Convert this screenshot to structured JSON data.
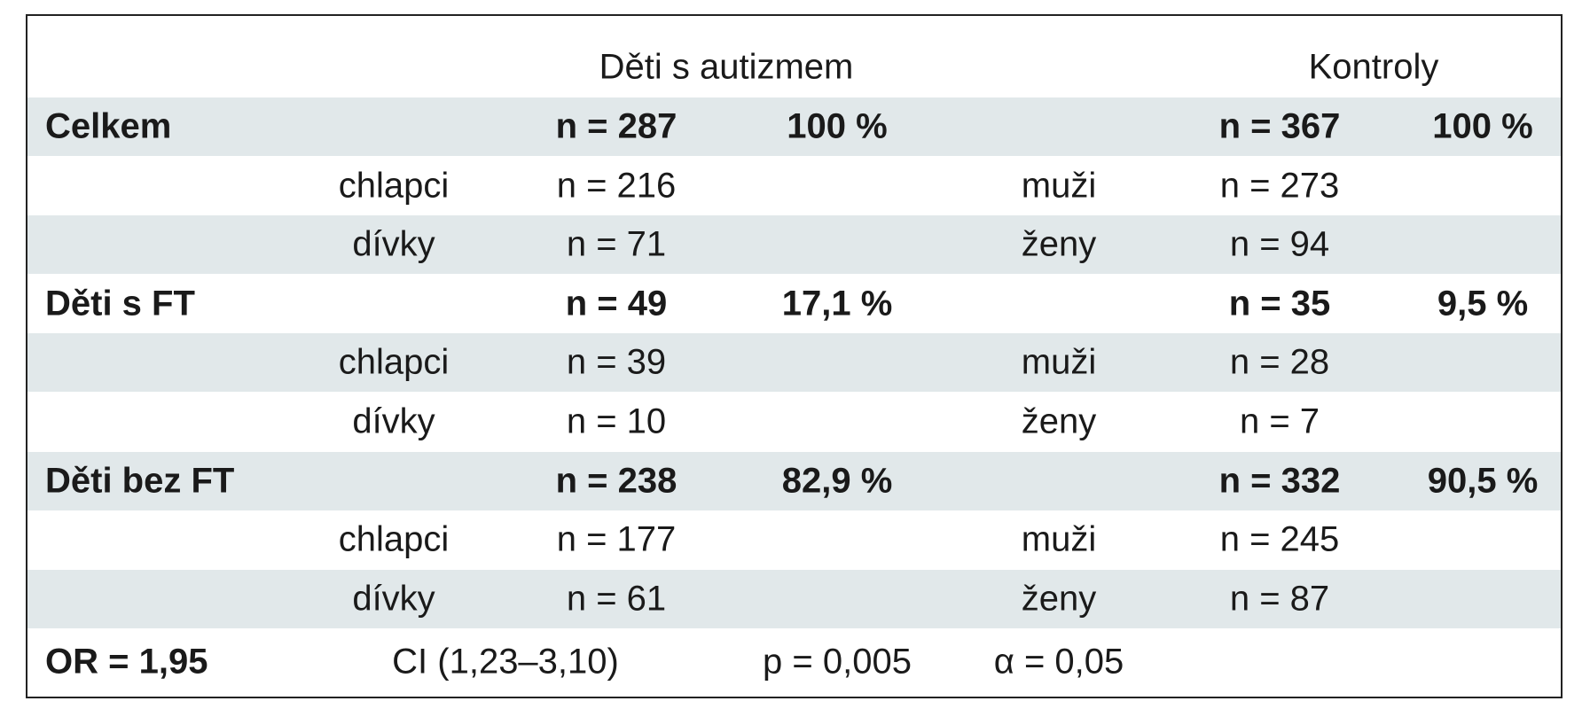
{
  "header": {
    "group1": "Děti s autizmem",
    "group2": "Kontroly"
  },
  "rows": [
    {
      "label": "Celkem",
      "n1": "n = 287",
      "pct1": "100 %",
      "n2": "n = 367",
      "pct2": "100 %"
    },
    {
      "sub1": "chlapci",
      "n1": "n = 216",
      "sub2": "muži",
      "n2": "n = 273"
    },
    {
      "sub1": "dívky",
      "n1": "n = 71",
      "sub2": "ženy",
      "n2": "n = 94"
    },
    {
      "label": "Děti s FT",
      "n1": "n = 49",
      "pct1": "17,1 %",
      "n2": "n = 35",
      "pct2": "9,5 %"
    },
    {
      "sub1": "chlapci",
      "n1": "n = 39",
      "sub2": "muži",
      "n2": "n = 28"
    },
    {
      "sub1": "dívky",
      "n1": "n = 10",
      "sub2": "ženy",
      "n2": "n = 7"
    },
    {
      "label": "Děti bez FT",
      "n1": "n = 238",
      "pct1": "82,9 %",
      "n2": "n = 332",
      "pct2": "90,5 %"
    },
    {
      "sub1": "chlapci",
      "n1": "n = 177",
      "sub2": "muži",
      "n2": "n = 245"
    },
    {
      "sub1": "dívky",
      "n1": "n = 61",
      "sub2": "ženy",
      "n2": "n = 87"
    }
  ],
  "footer": {
    "or": "OR = 1,95",
    "ci": "CI (1,23–3,10)",
    "p": "p = 0,005",
    "alpha": "α = 0,05"
  }
}
